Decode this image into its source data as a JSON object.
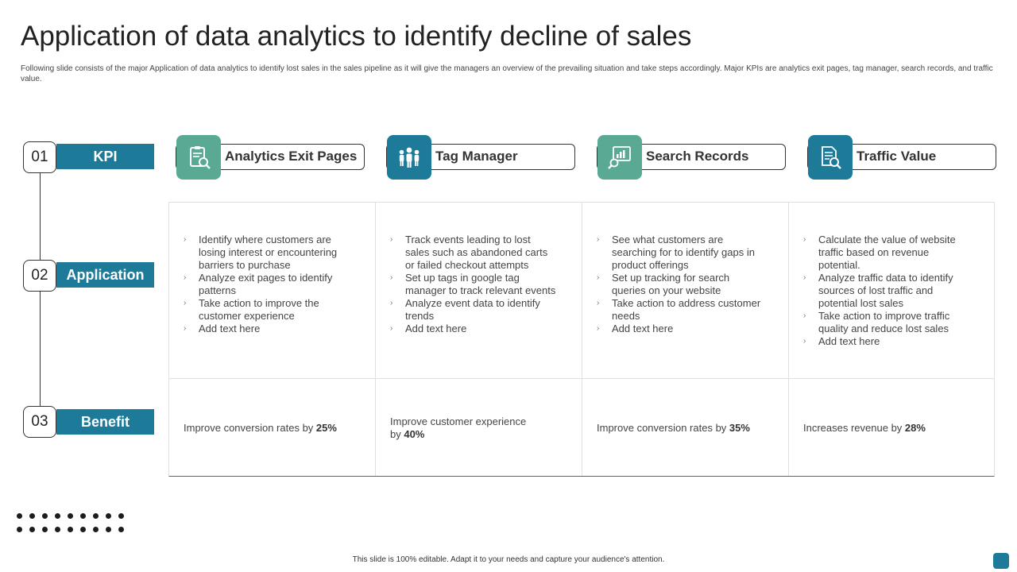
{
  "title": "Application of data analytics to identify decline of sales",
  "subtitle": "Following slide consists of the major Application of data analytics to identify lost sales in the sales pipeline as it will give the managers an overview of the prevailing situation and take steps accordingly. Major KPIs are analytics exit pages, tag manager, search records, and traffic value.",
  "rows": [
    {
      "num": "01",
      "label": "KPI"
    },
    {
      "num": "02",
      "label": "Application"
    },
    {
      "num": "03",
      "label": "Benefit"
    }
  ],
  "columns": [
    {
      "title": "Analytics Exit Pages",
      "icon": "clipboard-search-icon",
      "color": "#5aa994",
      "bullets": [
        "Identify where customers are losing interest or encountering barriers to purchase",
        "Analyze exit pages to identify patterns",
        "Take action to improve the customer experience",
        "Add text here"
      ],
      "benefit_text": "Improve  conversion  rates  by ",
      "benefit_value": "25%"
    },
    {
      "title": "Tag Manager",
      "icon": "team-icon",
      "color": "#1d7a99",
      "bullets": [
        "Track events leading to lost sales such as abandoned carts or failed checkout attempts",
        "Set up tags in google tag manager to track relevant events",
        "Analyze event data to identify trends",
        "Add text here"
      ],
      "benefit_text": "Improve  customer experience by ",
      "benefit_value": "40%"
    },
    {
      "title": "Search Records",
      "icon": "chart-search-icon",
      "color": "#5aa994",
      "bullets": [
        "See what customers are searching for to identify gaps in product offerings",
        "Set up tracking for search queries on your website",
        "Take action to address customer needs",
        "Add text here"
      ],
      "benefit_text": "Improve  conversion  rates  by ",
      "benefit_value": "35%"
    },
    {
      "title": "Traffic Value",
      "icon": "document-search-icon",
      "color": "#1d7a99",
      "bullets": [
        "Calculate the value of website traffic based on revenue potential.",
        "Analyze traffic data to identify sources of lost traffic and potential lost sales",
        "Take action to improve traffic quality and reduce lost sales",
        "Add text here"
      ],
      "benefit_text": "Increases revenue  by ",
      "benefit_value": "28%"
    }
  ],
  "footer": "This slide is 100% editable.  Adapt it to your needs and capture your audience's attention."
}
